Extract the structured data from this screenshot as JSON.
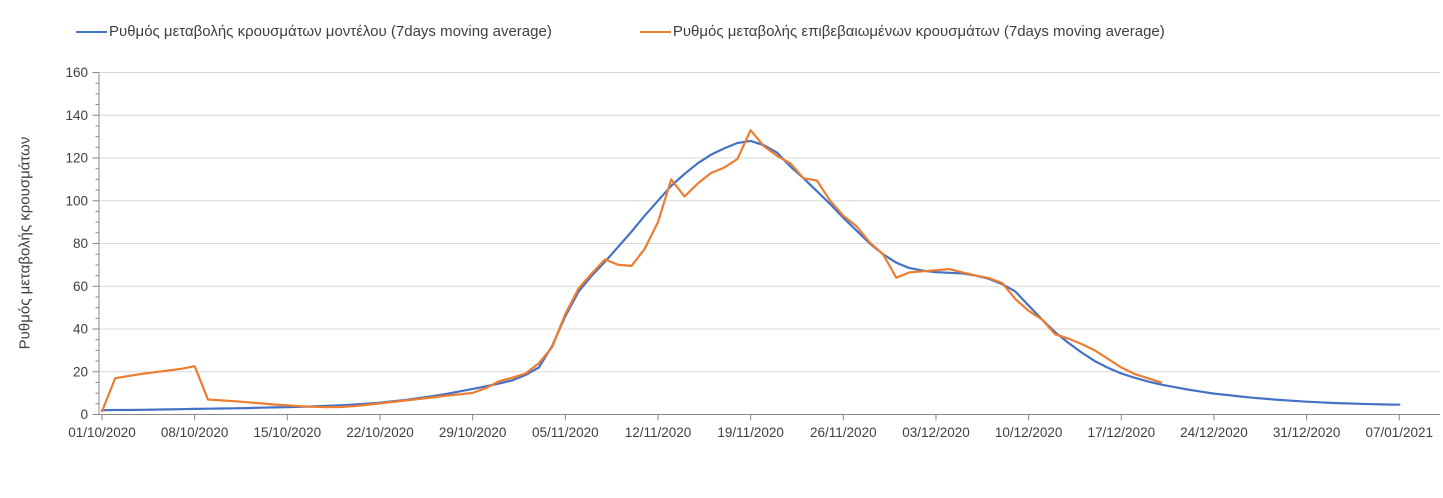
{
  "legend": {
    "items": [
      {
        "label": "Ρυθμός μεταβολής κρουσμάτων μοντέλου (7days moving average)"
      },
      {
        "label": "Ρυθμός μεταβολής επιβεβαιωμένων κρουσμάτων (7days moving average)"
      }
    ]
  },
  "colors": {
    "model_line": "#4472C4",
    "confirmed_line": "#ED7D31",
    "gridline": "#D9D9D9",
    "axis": "#898989",
    "tick_label": "#3f3f3f"
  },
  "chart_data": {
    "type": "line",
    "title": "",
    "ylabel": "Ρυθμός μεταβολής κρουσμάτων",
    "xlabel": "",
    "ylim": [
      0,
      160
    ],
    "y_ticks": [
      0,
      20,
      40,
      60,
      80,
      100,
      120,
      140,
      160
    ],
    "y_minor_tick_step": 5,
    "grid": "horizontal major gridlines, light gray, on white background",
    "legend_position": "top",
    "x_start_date": "01/10/2020",
    "x_end_date": "07/01/2021",
    "x_tick_labels": [
      "01/10/2020",
      "08/10/2020",
      "15/10/2020",
      "22/10/2020",
      "29/10/2020",
      "05/11/2020",
      "12/11/2020",
      "19/11/2020",
      "26/11/2020",
      "03/12/2020",
      "10/12/2020",
      "17/12/2020",
      "24/12/2020",
      "31/12/2020",
      "07/01/2021"
    ],
    "x_unit": "days since 01/10/2020, one point per day",
    "series": [
      {
        "name": "Ρυθμός μεταβολής κρουσμάτων μοντέλου (7days moving average)",
        "color": "#4472C4",
        "start_day": 0,
        "values": [
          2.0,
          2.1,
          2.1,
          2.2,
          2.3,
          2.4,
          2.5,
          2.6,
          2.7,
          2.8,
          2.9,
          3.0,
          3.2,
          3.3,
          3.4,
          3.6,
          3.8,
          4.05,
          4.3,
          4.65,
          5.05,
          5.5,
          6.2,
          6.9,
          7.7,
          8.6,
          9.6,
          10.8,
          12.0,
          13.2,
          14.5,
          16.0,
          18.5,
          22.0,
          32.0,
          46.0,
          57.5,
          65.0,
          71.5,
          78.5,
          85.5,
          93.0,
          100.0,
          107.0,
          112.5,
          117.5,
          121.5,
          124.5,
          127.0,
          128.0,
          126.0,
          122.5,
          116.0,
          110.5,
          104.5,
          98.5,
          92.0,
          86.0,
          80.0,
          75.0,
          71.0,
          68.5,
          67.3,
          66.6,
          66.3,
          66.0,
          65.0,
          63.5,
          61.0,
          57.5,
          51.0,
          44.5,
          38.5,
          33.5,
          29.0,
          25.0,
          21.8,
          19.2,
          17.2,
          15.5,
          14.0,
          12.8,
          11.7,
          10.7,
          9.8,
          9.1,
          8.4,
          7.8,
          7.3,
          6.8,
          6.4,
          6.0,
          5.7,
          5.4,
          5.2,
          5.0,
          4.8,
          4.7,
          4.6
        ]
      },
      {
        "name": "Ρυθμός μεταβολής επιβεβαιωμένων κρουσμάτων (7days moving average)",
        "color": "#ED7D31",
        "start_day": 0,
        "values": [
          1.5,
          17.0,
          18.0,
          19.0,
          19.8,
          20.6,
          21.4,
          22.6,
          7.0,
          6.6,
          6.2,
          5.7,
          5.2,
          4.7,
          4.3,
          3.9,
          3.6,
          3.4,
          3.5,
          3.9,
          4.5,
          5.2,
          5.9,
          6.6,
          7.3,
          8.0,
          8.8,
          9.4,
          10.1,
          12.3,
          15.6,
          17.2,
          19.2,
          24.0,
          31.5,
          47.0,
          59.0,
          66.0,
          72.5,
          70.0,
          69.5,
          77.5,
          90.0,
          110.0,
          102.0,
          108.0,
          113.0,
          115.5,
          119.5,
          133.0,
          125.5,
          121.0,
          117.5,
          110.5,
          109.5,
          100.0,
          93.0,
          88.0,
          80.5,
          75.0,
          64.0,
          66.5,
          67.0,
          67.5,
          68.0,
          66.5,
          65.0,
          63.8,
          61.5,
          54.0,
          48.5,
          44.5,
          37.5,
          35.5,
          33.0,
          30.0,
          26.0,
          22.0,
          19.0,
          17.0,
          15.0
        ]
      }
    ]
  }
}
